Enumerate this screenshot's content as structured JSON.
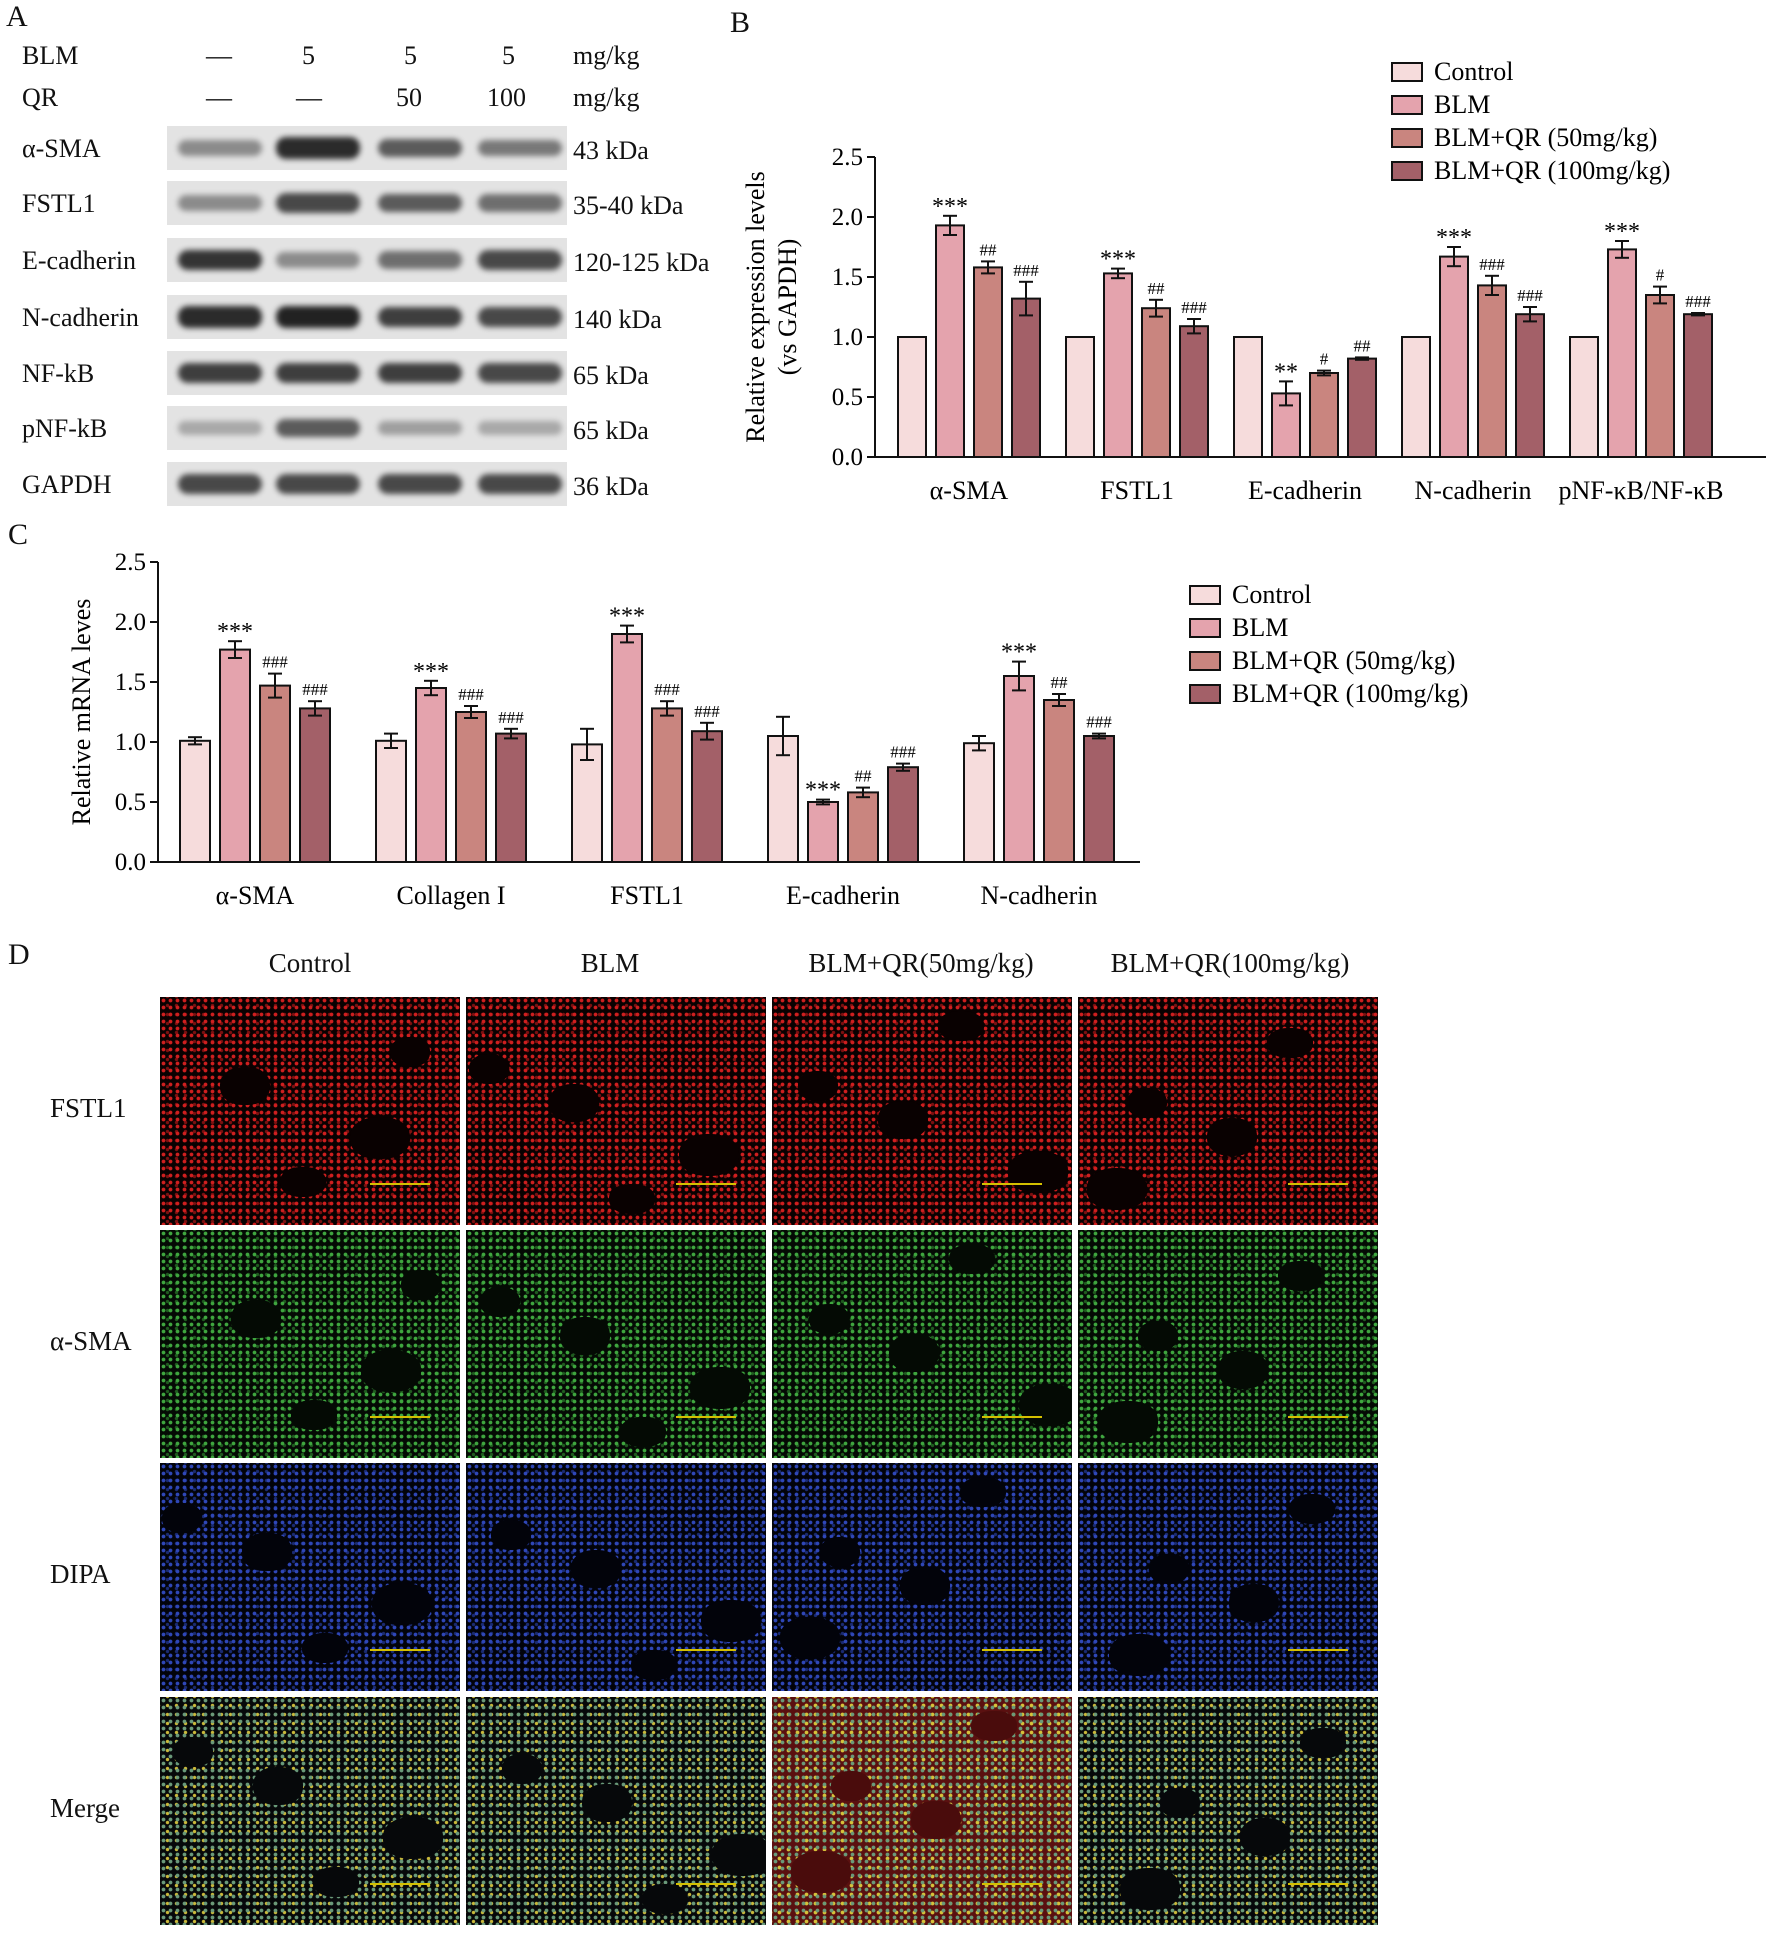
{
  "panels": {
    "A": "A",
    "B": "B",
    "C": "C",
    "D": "D"
  },
  "western": {
    "headers": [
      {
        "label": "BLM",
        "values": [
          "—",
          "5",
          "5",
          "5"
        ],
        "unit": "mg/kg"
      },
      {
        "label": "QR",
        "values": [
          "—",
          "—",
          "50",
          "100"
        ],
        "unit": "mg/kg"
      }
    ],
    "rows": [
      {
        "protein": "α-SMA",
        "kda": "43 kDa",
        "intensity": [
          0.45,
          0.95,
          0.7,
          0.55
        ]
      },
      {
        "protein": "FSTL1",
        "kda": "35-40 kDa",
        "intensity": [
          0.45,
          0.8,
          0.7,
          0.6
        ]
      },
      {
        "protein": "E-cadherin",
        "kda": "120-125 kDa",
        "intensity": [
          0.9,
          0.45,
          0.6,
          0.8
        ]
      },
      {
        "protein": "N-cadherin",
        "kda": "140 kDa",
        "intensity": [
          0.95,
          1.0,
          0.85,
          0.8
        ]
      },
      {
        "protein": "NF-kB",
        "kda": "65 kDa",
        "intensity": [
          0.85,
          0.85,
          0.85,
          0.8
        ]
      },
      {
        "protein": "pNF-kB",
        "kda": "65 kDa",
        "intensity": [
          0.3,
          0.7,
          0.35,
          0.3
        ]
      },
      {
        "protein": "GAPDH",
        "kda": "36 kDa",
        "intensity": [
          0.8,
          0.8,
          0.8,
          0.8
        ]
      }
    ]
  },
  "chart_data": [
    {
      "id": "B",
      "type": "bar",
      "ylabel": "Relative expression levels",
      "ylabel2": "(vs GAPDH)",
      "ylim": [
        0,
        2.5
      ],
      "yticks": [
        "0.0",
        "0.5",
        "1.0",
        "1.5",
        "2.0",
        "2.5"
      ],
      "categories": [
        "α-SMA",
        "FSTL1",
        "E-cadherin",
        "N-cadherin",
        "pNF-κB/NF-κB"
      ],
      "legend_position": "top-right",
      "series": [
        {
          "name": "Control",
          "color": "#f6dcdc",
          "values": [
            1.0,
            1.0,
            1.0,
            1.0,
            1.0
          ],
          "errors": [
            0,
            0,
            0,
            0,
            0
          ],
          "marks": [
            "",
            "",
            "",
            "",
            ""
          ]
        },
        {
          "name": "BLM",
          "color": "#e4a3ad",
          "values": [
            1.93,
            1.53,
            0.53,
            1.67,
            1.73
          ],
          "errors": [
            0.08,
            0.04,
            0.1,
            0.08,
            0.07
          ],
          "marks": [
            "***",
            "***",
            "**",
            "***",
            "***"
          ]
        },
        {
          "name": "BLM+QR (50mg/kg)",
          "color": "#c9857f",
          "values": [
            1.58,
            1.24,
            0.7,
            1.43,
            1.35
          ],
          "errors": [
            0.05,
            0.07,
            0.02,
            0.08,
            0.07
          ],
          "marks": [
            "##",
            "##",
            "#",
            "###",
            "#"
          ]
        },
        {
          "name": "BLM+QR (100mg/kg)",
          "color": "#a36068",
          "values": [
            1.32,
            1.09,
            0.82,
            1.19,
            1.19
          ],
          "errors": [
            0.14,
            0.06,
            0.01,
            0.06,
            0.01
          ],
          "marks": [
            "###",
            "###",
            "##",
            "###",
            "###"
          ]
        }
      ]
    },
    {
      "id": "C",
      "type": "bar",
      "ylabel": "Relative mRNA leves",
      "ylim": [
        0,
        2.5
      ],
      "yticks": [
        "0.0",
        "0.5",
        "1.0",
        "1.5",
        "2.0",
        "2.5"
      ],
      "categories": [
        "α-SMA",
        "Collagen I",
        "FSTL1",
        "E-cadherin",
        "N-cadherin"
      ],
      "legend_position": "right",
      "series": [
        {
          "name": "Control",
          "color": "#f6dcdc",
          "values": [
            1.01,
            1.01,
            0.98,
            1.05,
            0.99
          ],
          "errors": [
            0.03,
            0.06,
            0.13,
            0.16,
            0.06
          ],
          "marks": [
            "",
            "",
            "",
            "",
            ""
          ]
        },
        {
          "name": "BLM",
          "color": "#e4a3ad",
          "values": [
            1.77,
            1.45,
            1.9,
            0.5,
            1.55
          ],
          "errors": [
            0.07,
            0.06,
            0.07,
            0.02,
            0.12
          ],
          "marks": [
            "***",
            "***",
            "***",
            "***",
            "***"
          ]
        },
        {
          "name": "BLM+QR (50mg/kg)",
          "color": "#c9857f",
          "values": [
            1.47,
            1.25,
            1.28,
            0.58,
            1.35
          ],
          "errors": [
            0.1,
            0.05,
            0.06,
            0.04,
            0.05
          ],
          "marks": [
            "###",
            "###",
            "###",
            "##",
            "##"
          ]
        },
        {
          "name": "BLM+QR (100mg/kg)",
          "color": "#a36068",
          "values": [
            1.28,
            1.07,
            1.09,
            0.79,
            1.05
          ],
          "errors": [
            0.06,
            0.04,
            0.07,
            0.03,
            0.02
          ],
          "marks": [
            "###",
            "###",
            "###",
            "###",
            "###"
          ]
        }
      ]
    }
  ],
  "immuno": {
    "columns": [
      "Control",
      "BLM",
      "BLM+QR(50mg/kg)",
      "BLM+QR(100mg/kg)"
    ],
    "rows": [
      {
        "label": "FSTL1",
        "channel": "red"
      },
      {
        "label": "α-SMA",
        "channel": "green"
      },
      {
        "label": "DIPA",
        "channel": "blue"
      },
      {
        "label": "Merge",
        "channel": "merge"
      }
    ],
    "channel_colors": {
      "red": "#cf1f1f",
      "green": "#3fa63f",
      "blue": "#2f47b8",
      "merge": "#5e8c74"
    }
  }
}
